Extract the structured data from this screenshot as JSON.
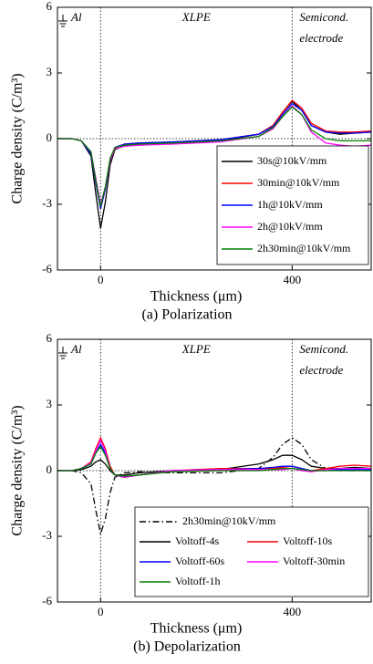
{
  "chart_data": [
    {
      "type": "line",
      "caption": "(a) Polarization",
      "xlabel": "Thickness (μm)",
      "ylabel": "Charge density (C/m³)",
      "annotations": [
        "Al",
        "XLPE",
        "Semicond.",
        "electrode"
      ],
      "x": [
        -90,
        -60,
        -40,
        -20,
        -10,
        0,
        10,
        20,
        30,
        50,
        80,
        150,
        250,
        330,
        360,
        380,
        400,
        420,
        440,
        470,
        500,
        530,
        565
      ],
      "xlim": [
        -90,
        565
      ],
      "xticks": [
        0,
        400
      ],
      "ylim": [
        -6,
        6
      ],
      "yticks": [
        -6,
        -3,
        0,
        3,
        6
      ],
      "zero_line": true,
      "legend": "lower right",
      "legend_columns": 1,
      "series": [
        {
          "name": "30s@10kV/mm",
          "color": "#000000",
          "linestyle": "solid",
          "values": [
            0,
            0,
            -0.1,
            -0.8,
            -2.5,
            -4.1,
            -2.9,
            -1.2,
            -0.5,
            -0.3,
            -0.25,
            -0.2,
            -0.1,
            0.2,
            0.6,
            1.2,
            1.7,
            1.3,
            0.6,
            0.3,
            0.2,
            0.25,
            0.3
          ]
        },
        {
          "name": "30min@10kV/mm",
          "color": "#ff0000",
          "linestyle": "solid",
          "values": [
            0,
            0,
            -0.1,
            -0.7,
            -2.0,
            -3.2,
            -2.3,
            -1.0,
            -0.4,
            -0.25,
            -0.2,
            -0.15,
            -0.05,
            0.2,
            0.6,
            1.2,
            1.75,
            1.4,
            0.7,
            0.35,
            0.3,
            0.3,
            0.35
          ]
        },
        {
          "name": "1h@10kV/mm",
          "color": "#0000ff",
          "linestyle": "solid",
          "values": [
            0,
            0,
            -0.1,
            -0.7,
            -2.0,
            -3.2,
            -2.3,
            -1.0,
            -0.4,
            -0.25,
            -0.2,
            -0.15,
            -0.05,
            0.2,
            0.55,
            1.1,
            1.6,
            1.3,
            0.6,
            0.3,
            0.25,
            0.25,
            0.3
          ]
        },
        {
          "name": "2h@10kV/mm",
          "color": "#ff00ff",
          "linestyle": "solid",
          "values": [
            0,
            0,
            -0.1,
            -0.6,
            -1.8,
            -3.0,
            -2.2,
            -1.0,
            -0.45,
            -0.35,
            -0.3,
            -0.25,
            -0.15,
            0.1,
            0.45,
            1.0,
            1.5,
            1.1,
            0.3,
            -0.2,
            -0.3,
            -0.35,
            -0.3
          ]
        },
        {
          "name": "2h30min@10kV/mm",
          "color": "#008000",
          "linestyle": "solid",
          "values": [
            0,
            0,
            -0.1,
            -0.6,
            -1.9,
            -3.1,
            -2.2,
            -0.9,
            -0.4,
            -0.3,
            -0.25,
            -0.2,
            -0.1,
            0.1,
            0.5,
            1.0,
            1.45,
            1.1,
            0.4,
            0.0,
            -0.1,
            -0.1,
            -0.1
          ]
        }
      ]
    },
    {
      "type": "line",
      "caption": "(b) Depolarization",
      "xlabel": "Thickness (μm)",
      "ylabel": "Charge density (C/m³)",
      "annotations": [
        "Al",
        "XLPE",
        "Semicond.",
        "electrode"
      ],
      "x": [
        -90,
        -60,
        -40,
        -20,
        -10,
        0,
        10,
        20,
        30,
        50,
        80,
        150,
        250,
        330,
        360,
        380,
        400,
        420,
        440,
        470,
        500,
        530,
        565
      ],
      "xlim": [
        -90,
        565
      ],
      "xticks": [
        0,
        400
      ],
      "ylim": [
        -6,
        6
      ],
      "yticks": [
        -6,
        -3,
        0,
        3,
        6
      ],
      "zero_line": true,
      "legend": "lower right",
      "legend_columns": 2,
      "series": [
        {
          "name": "2h30min@10kV/mm",
          "color": "#000000",
          "linestyle": "dashdot",
          "values": [
            0,
            0,
            -0.1,
            -0.6,
            -1.8,
            -2.9,
            -2.2,
            -1.0,
            -0.3,
            -0.1,
            -0.05,
            -0.1,
            -0.1,
            0.1,
            0.6,
            1.2,
            1.5,
            1.2,
            0.5,
            0.1,
            0,
            0,
            0
          ]
        },
        {
          "name": "Voltoff-4s",
          "color": "#000000",
          "linestyle": "solid",
          "values": [
            0,
            0,
            0.05,
            0.2,
            0.4,
            0.5,
            0.3,
            0,
            -0.2,
            -0.2,
            -0.1,
            0,
            0.05,
            0.3,
            0.5,
            0.7,
            0.7,
            0.5,
            0.2,
            0.1,
            0.1,
            0.15,
            0.1
          ]
        },
        {
          "name": "Voltoff-10s",
          "color": "#ff0000",
          "linestyle": "solid",
          "values": [
            0,
            0,
            0.1,
            0.4,
            1.0,
            1.5,
            1.0,
            0.2,
            -0.2,
            -0.3,
            -0.2,
            0,
            0.1,
            0.1,
            0.1,
            0.15,
            0.2,
            0.1,
            0,
            0.1,
            0.2,
            0.25,
            0.2
          ]
        },
        {
          "name": "Voltoff-60s",
          "color": "#0000ff",
          "linestyle": "solid",
          "values": [
            0,
            0,
            0.1,
            0.3,
            0.8,
            1.2,
            0.8,
            0.1,
            -0.2,
            -0.3,
            -0.2,
            0,
            0.05,
            0.1,
            0.15,
            0.2,
            0.2,
            0.1,
            0,
            0,
            0.05,
            0.05,
            0.05
          ]
        },
        {
          "name": "Voltoff-30min",
          "color": "#ff00ff",
          "linestyle": "solid",
          "values": [
            0,
            0,
            0.1,
            0.35,
            0.9,
            1.4,
            0.9,
            0.1,
            -0.2,
            -0.3,
            -0.2,
            0,
            0.05,
            0.05,
            0.05,
            0.05,
            0.1,
            0,
            -0.05,
            0.05,
            0.1,
            0.1,
            0.1
          ]
        },
        {
          "name": "Voltoff-1h",
          "color": "#008000",
          "linestyle": "solid",
          "values": [
            0,
            0,
            0.1,
            0.3,
            0.8,
            1.1,
            0.7,
            0.1,
            -0.2,
            -0.25,
            -0.2,
            -0.05,
            0,
            0,
            0.05,
            0.1,
            0.1,
            0.05,
            0,
            0,
            0,
            0,
            0
          ]
        }
      ]
    }
  ]
}
